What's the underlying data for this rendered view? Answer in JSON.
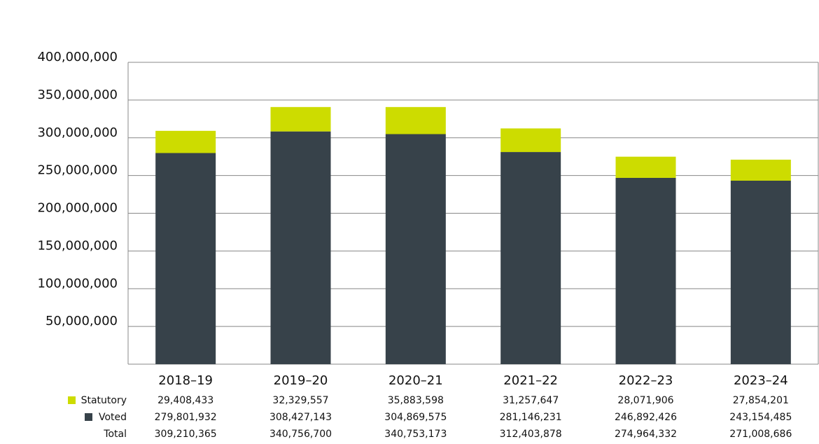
{
  "chart_data": {
    "type": "bar",
    "stacked": true,
    "categories": [
      "2018–19",
      "2019–20",
      "2020–21",
      "2021–22",
      "2022–23",
      "2023–24"
    ],
    "series": [
      {
        "name": "Voted",
        "color": "#37424a",
        "values": [
          279801932,
          308427143,
          304869575,
          281146231,
          246892426,
          243154485
        ],
        "value_labels": [
          "279,801,932",
          "308,427,143",
          "304,869,575",
          "281,146,231",
          "246,892,426",
          "243,154,485"
        ]
      },
      {
        "name": "Statutory",
        "color": "#cddc00",
        "values": [
          29408433,
          32329557,
          35883598,
          31257647,
          28071906,
          27854201
        ],
        "value_labels": [
          "29,408,433",
          "32,329,557",
          "35,883,598",
          "31,257,647",
          "28,071,906",
          "27,854,201"
        ]
      }
    ],
    "totals": {
      "name": "Total",
      "values": [
        309210365,
        340756700,
        340753173,
        312403878,
        274964332,
        271008686
      ],
      "value_labels": [
        "309,210,365",
        "340,756,700",
        "340,753,173",
        "312,403,878",
        "274,964,332",
        "271,008,686"
      ]
    },
    "ylim": [
      0,
      400000000
    ],
    "yticks": [
      {
        "value": 50000000,
        "label": "50,000,000"
      },
      {
        "value": 100000000,
        "label": "100,000,000"
      },
      {
        "value": 150000000,
        "label": "150,000,000"
      },
      {
        "value": 200000000,
        "label": "200,000,000"
      },
      {
        "value": 250000000,
        "label": "250,000,000"
      },
      {
        "value": 300000000,
        "label": "300,000,000"
      },
      {
        "value": 350000000,
        "label": "350,000,000"
      },
      {
        "value": 400000000,
        "label": "400,000,000"
      }
    ],
    "grid": true
  }
}
